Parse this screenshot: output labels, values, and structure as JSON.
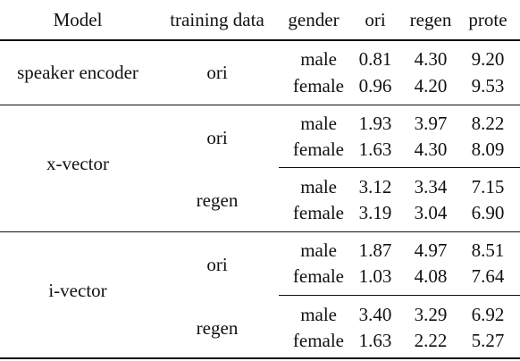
{
  "headers": [
    "Model",
    "training data",
    "gender",
    "ori",
    "regen",
    "prote"
  ],
  "groups": [
    {
      "model": "speaker encoder",
      "blocks": [
        {
          "training": "ori",
          "rows": [
            {
              "gender": "male",
              "ori": "0.81",
              "regen": "4.30",
              "prote": "9.20"
            },
            {
              "gender": "female",
              "ori": "0.96",
              "regen": "4.20",
              "prote": "9.53"
            }
          ]
        }
      ]
    },
    {
      "model": "x-vector",
      "blocks": [
        {
          "training": "ori",
          "rows": [
            {
              "gender": "male",
              "ori": "1.93",
              "regen": "3.97",
              "prote": "8.22"
            },
            {
              "gender": "female",
              "ori": "1.63",
              "regen": "4.30",
              "prote": "8.09"
            }
          ]
        },
        {
          "training": "regen",
          "rows": [
            {
              "gender": "male",
              "ori": "3.12",
              "regen": "3.34",
              "prote": "7.15"
            },
            {
              "gender": "female",
              "ori": "3.19",
              "regen": "3.04",
              "prote": "6.90"
            }
          ]
        }
      ]
    },
    {
      "model": "i-vector",
      "blocks": [
        {
          "training": "ori",
          "rows": [
            {
              "gender": "male",
              "ori": "1.87",
              "regen": "4.97",
              "prote": "8.51"
            },
            {
              "gender": "female",
              "ori": "1.03",
              "regen": "4.08",
              "prote": "7.64"
            }
          ]
        },
        {
          "training": "regen",
          "rows": [
            {
              "gender": "male",
              "ori": "3.40",
              "regen": "3.29",
              "prote": "6.92"
            },
            {
              "gender": "female",
              "ori": "1.63",
              "regen": "2.22",
              "prote": "5.27"
            }
          ]
        }
      ]
    }
  ]
}
